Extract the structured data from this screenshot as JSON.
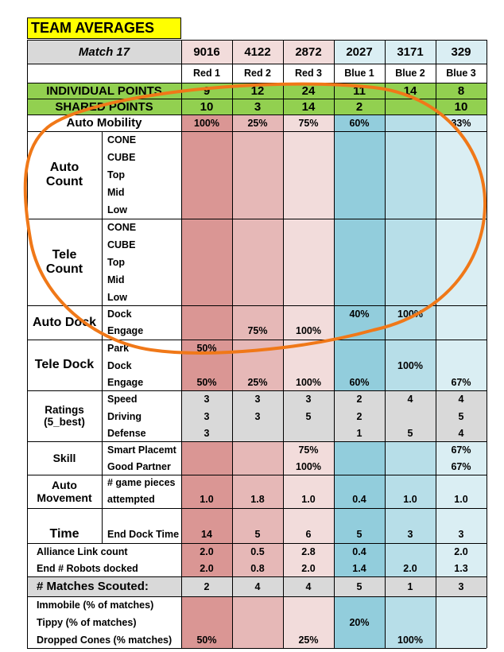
{
  "title": "TEAM AVERAGES",
  "match_label": "Match 17",
  "teams": [
    {
      "number": "9016",
      "position": "Red 1"
    },
    {
      "number": "4122",
      "position": "Red 2"
    },
    {
      "number": "2872",
      "position": "Red 3"
    },
    {
      "number": "2027",
      "position": "Blue 1"
    },
    {
      "number": "3171",
      "position": "Blue 2"
    },
    {
      "number": "329",
      "position": "Blue 3"
    }
  ],
  "colors": {
    "red1": "#da9694",
    "red2": "#e6b8b7",
    "red3": "#f2dcdb",
    "blue1": "#92cddc",
    "blue2": "#b7dee8",
    "blue3": "#daeef3",
    "header_red": "#f2dcdb",
    "header_blue": "#daeef3",
    "green": "#92d050",
    "gray": "#d9d9d9",
    "title_yellow": "#ffff00",
    "annotation": "#f07818"
  },
  "rows": [
    {
      "group": "",
      "label": "INDIVIDUAL POINTS",
      "style": "green",
      "values": [
        "9",
        "12",
        "24",
        "11",
        "14",
        "8"
      ]
    },
    {
      "group": "",
      "label": "SHARED POINTS",
      "style": "green",
      "values": [
        "10",
        "3",
        "14",
        "2",
        "",
        "10"
      ]
    },
    {
      "group": "",
      "label": "Auto Mobility",
      "style": "big",
      "values": [
        "100%",
        "25%",
        "75%",
        "60%",
        "",
        "33%"
      ]
    },
    {
      "group": "Auto Count",
      "label": "CONE",
      "values": [
        "",
        "",
        "",
        "",
        "",
        ""
      ]
    },
    {
      "group": "Auto Count",
      "label": "CUBE",
      "values": [
        "",
        "",
        "",
        "",
        "",
        ""
      ]
    },
    {
      "group": "Auto Count",
      "label": "Top",
      "values": [
        "",
        "",
        "",
        "",
        "",
        ""
      ]
    },
    {
      "group": "Auto Count",
      "label": "Mid",
      "values": [
        "",
        "",
        "",
        "",
        "",
        ""
      ]
    },
    {
      "group": "Auto Count",
      "label": "Low",
      "values": [
        "",
        "",
        "",
        "",
        "",
        ""
      ]
    },
    {
      "group": "Tele Count",
      "label": "CONE",
      "values": [
        "",
        "",
        "",
        "",
        "",
        ""
      ]
    },
    {
      "group": "Tele Count",
      "label": "CUBE",
      "values": [
        "",
        "",
        "",
        "",
        "",
        ""
      ]
    },
    {
      "group": "Tele Count",
      "label": "Top",
      "values": [
        "",
        "",
        "",
        "",
        "",
        ""
      ]
    },
    {
      "group": "Tele Count",
      "label": "Mid",
      "values": [
        "",
        "",
        "",
        "",
        "",
        ""
      ]
    },
    {
      "group": "Tele Count",
      "label": "Low",
      "values": [
        "",
        "",
        "",
        "",
        "",
        ""
      ]
    },
    {
      "group": "Auto Dock",
      "label": "Dock",
      "values": [
        "",
        "",
        "",
        "40%",
        "100%",
        ""
      ]
    },
    {
      "group": "Auto Dock",
      "label": "Engage",
      "values": [
        "",
        "75%",
        "100%",
        "",
        "",
        ""
      ]
    },
    {
      "group": "Tele Dock",
      "label": "Park",
      "values": [
        "50%",
        "",
        "",
        "",
        "",
        ""
      ]
    },
    {
      "group": "Tele Dock",
      "label": "Dock",
      "values": [
        "",
        "",
        "",
        "",
        "100%",
        ""
      ]
    },
    {
      "group": "Tele Dock",
      "label": "Engage",
      "values": [
        "50%",
        "25%",
        "100%",
        "60%",
        "",
        "67%"
      ]
    },
    {
      "group": "Ratings",
      "label": "Speed",
      "values": [
        "3",
        "3",
        "3",
        "2",
        "4",
        "4"
      ]
    },
    {
      "group": "Ratings",
      "label": "Driving",
      "values": [
        "3",
        "3",
        "5",
        "2",
        "",
        "5"
      ]
    },
    {
      "group": "Ratings",
      "label": "Defense",
      "values": [
        "3",
        "",
        "",
        "1",
        "5",
        "4"
      ]
    },
    {
      "group": "Skill",
      "label": "Smart Placemt",
      "values": [
        "",
        "",
        "75%",
        "",
        "",
        "67%"
      ]
    },
    {
      "group": "Skill",
      "label": "Good Partner",
      "values": [
        "",
        "",
        "100%",
        "",
        "",
        "67%"
      ]
    },
    {
      "group": "Auto Movement",
      "label": "# game pieces",
      "values": [
        "",
        "",
        "",
        "",
        "",
        ""
      ]
    },
    {
      "group": "Auto Movement",
      "label": "attempted",
      "values": [
        "1.0",
        "1.8",
        "1.0",
        "0.4",
        "1.0",
        "1.0"
      ]
    },
    {
      "group": "Time",
      "label": "End Dock Time",
      "values": [
        "14",
        "5",
        "6",
        "5",
        "3",
        "3"
      ]
    },
    {
      "group": "",
      "label": "Alliance Link count",
      "values": [
        "2.0",
        "0.5",
        "2.8",
        "0.4",
        "",
        "2.0"
      ]
    },
    {
      "group": "",
      "label": "End # Robots docked",
      "values": [
        "2.0",
        "0.8",
        "2.0",
        "1.4",
        "2.0",
        "1.3"
      ]
    },
    {
      "group": "",
      "label": "# Matches Scouted:",
      "style": "gray",
      "values": [
        "2",
        "4",
        "4",
        "5",
        "1",
        "3"
      ]
    },
    {
      "group": "",
      "label": "Immobile (% of matches)",
      "values": [
        "",
        "",
        "",
        "",
        "",
        ""
      ]
    },
    {
      "group": "",
      "label": "Tippy (% of matches)",
      "values": [
        "",
        "",
        "",
        "20%",
        "",
        ""
      ]
    },
    {
      "group": "",
      "label": "Dropped Cones (% matches)",
      "values": [
        "50%",
        "",
        "25%",
        "",
        "100%",
        ""
      ]
    }
  ],
  "groups": {
    "auto_count": [
      "Auto",
      "Count"
    ],
    "tele_count": [
      "Tele",
      "Count"
    ],
    "auto_dock": "Auto Dock",
    "tele_dock": "Tele Dock",
    "ratings": [
      "Ratings",
      "(5_best)"
    ],
    "skill": "Skill",
    "auto_movement": [
      "Auto",
      "Movement"
    ],
    "time": "Time"
  }
}
